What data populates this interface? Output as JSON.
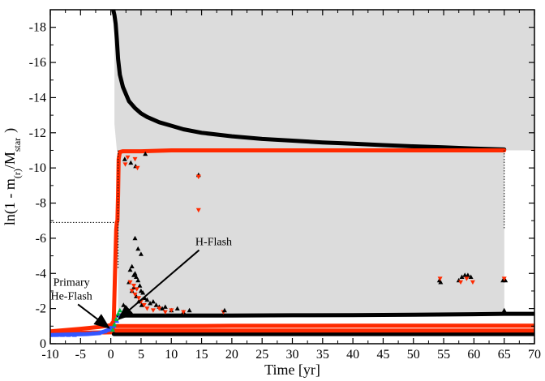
{
  "chart_data": {
    "type": "scatter",
    "xlabel": "Time [yr]",
    "ylabel": "ln(1 - m",
    "ylabel_sub1": "(r)",
    "ylabel_mid": "/M",
    "ylabel_sub2": "star",
    "ylabel_end": ")",
    "xlim": [
      -10,
      70
    ],
    "ylim": [
      0,
      -19
    ],
    "y_inverted": true,
    "grid": false,
    "legend": "none",
    "x_ticks": [
      -10,
      -5,
      0,
      5,
      10,
      15,
      20,
      25,
      30,
      35,
      40,
      45,
      50,
      55,
      60,
      65,
      70
    ],
    "x_tick_labels": [
      "-10",
      "-5",
      "0",
      "5",
      "10",
      "15",
      "20",
      "25",
      "30",
      "35",
      "40",
      "45",
      "50",
      "55",
      "60",
      "65",
      "70"
    ],
    "y_ticks": [
      0,
      -2,
      -4,
      -6,
      -8,
      -10,
      -12,
      -14,
      -16,
      -18
    ],
    "y_tick_labels": [
      "0",
      "-2",
      "-4",
      "-6",
      "-8",
      "-10",
      "-12",
      "-14",
      "-16",
      "-18"
    ],
    "shaded_region": {
      "color": "#dcdcdc",
      "polygon": [
        [
          1.2,
          -1.6
        ],
        [
          1.2,
          -11.0
        ],
        [
          65,
          -11.0
        ],
        [
          65,
          -1.7
        ],
        [
          1.2,
          -1.6
        ]
      ],
      "upper_polygon": [
        [
          0.6,
          -19
        ],
        [
          70,
          -19
        ],
        [
          70,
          -11.0
        ],
        [
          65,
          -11.0
        ],
        [
          65,
          -1.7
        ],
        [
          1.2,
          -1.6
        ],
        [
          1.2,
          -11.0
        ],
        [
          1.0,
          -11.0
        ],
        [
          0.6,
          -12.5
        ]
      ]
    },
    "series": [
      {
        "color": "#000000",
        "marker": "line",
        "x": [
          0.4,
          0.6,
          0.8,
          1.0,
          1.2,
          1.5,
          2,
          3,
          4,
          5,
          6,
          8,
          10,
          12,
          15,
          20,
          25,
          30,
          35,
          40,
          45,
          50,
          55,
          60,
          65
        ],
        "y": [
          -19,
          -18.7,
          -18.2,
          -17.3,
          -16.2,
          -15.3,
          -14.6,
          -13.8,
          -13.4,
          -13.1,
          -12.9,
          -12.6,
          -12.4,
          -12.2,
          -12.0,
          -11.8,
          -11.65,
          -11.55,
          -11.45,
          -11.38,
          -11.3,
          -11.23,
          -11.17,
          -11.1,
          -11.05
        ]
      },
      {
        "color": "#ff2a00",
        "marker": "line",
        "x": [
          -10,
          0.3,
          0.5,
          0.7,
          0.9,
          1.0,
          1.1,
          1.2,
          1.3,
          1.5,
          2,
          5,
          10,
          20,
          30,
          40,
          50,
          60,
          65
        ],
        "y": [
          -0.6,
          -0.65,
          -1.5,
          -4.0,
          -6.5,
          -6.9,
          -7.0,
          -8.5,
          -10.5,
          -10.9,
          -10.95,
          -10.95,
          -11.0,
          -11.0,
          -11.0,
          -11.0,
          -11.0,
          -11.0,
          -11.0
        ]
      },
      {
        "color": "#ff2a00",
        "marker": "line",
        "x": [
          -10,
          -5,
          -2,
          0,
          0.3
        ],
        "y": [
          -0.7,
          -0.85,
          -0.95,
          -1.05,
          -1.2
        ]
      },
      {
        "color": "#000000",
        "marker": "line",
        "x": [
          1.2,
          5,
          10,
          20,
          30,
          40,
          50,
          60,
          65,
          70
        ],
        "y": [
          -1.6,
          -1.6,
          -1.6,
          -1.6,
          -1.62,
          -1.63,
          -1.65,
          -1.68,
          -1.7,
          -1.7
        ]
      },
      {
        "color": "#ff2a00",
        "marker": "line",
        "x": [
          1.0,
          5,
          10,
          20,
          30,
          40,
          50,
          60,
          70
        ],
        "y": [
          -1.0,
          -1.0,
          -1.0,
          -1.02,
          -1.02,
          -1.03,
          -1.03,
          -1.03,
          -1.03
        ]
      },
      {
        "color": "#000000",
        "marker": "line",
        "x": [
          0.5,
          5,
          10,
          20,
          30,
          40,
          50,
          60,
          70
        ],
        "y": [
          -0.55,
          -0.55,
          -0.55,
          -0.55,
          -0.55,
          -0.55,
          -0.55,
          -0.55,
          -0.55
        ]
      },
      {
        "color": "#ff2a00",
        "marker": "line",
        "x": [
          0.8,
          5,
          10,
          20,
          30,
          40,
          50,
          60,
          70
        ],
        "y": [
          -0.75,
          -0.75,
          -0.75,
          -0.75,
          -0.75,
          -0.75,
          -0.75,
          -0.75,
          -0.75
        ]
      },
      {
        "color": "#3355ff",
        "marker": "line",
        "x": [
          -10,
          -4,
          -2,
          -1,
          -0.3,
          0
        ],
        "y": [
          -0.5,
          -0.55,
          -0.6,
          -0.7,
          -0.8,
          -0.9
        ]
      },
      {
        "color": "#000000",
        "marker": "triangle",
        "x": [
          2.1,
          2.5,
          3,
          3.2,
          3.5,
          3.8,
          4,
          4.2,
          4.5,
          4.8,
          5,
          5.3,
          5.6,
          6,
          6.5,
          7,
          7.5,
          8,
          8.5,
          9,
          10,
          11,
          12,
          13,
          4,
          4.5,
          5,
          3.5,
          3.8,
          4.2,
          4.6,
          5.1,
          2.3,
          4.1,
          5.7,
          3.3
        ],
        "y": [
          -2.2,
          -1.8,
          -3.5,
          -4.2,
          -4.4,
          -3.9,
          -4.0,
          -3.8,
          -3.6,
          -3.3,
          -3.0,
          -2.9,
          -2.6,
          -2.5,
          -2.3,
          -2.4,
          -2.2,
          -2.1,
          -2.0,
          -2.1,
          -1.9,
          -2.0,
          -1.8,
          -1.9,
          -6.0,
          -5.4,
          -5.1,
          -3.0,
          -3.2,
          -2.7,
          -2.4,
          -2.2,
          -10.5,
          -10.1,
          -10.8,
          -10.3
        ]
      },
      {
        "color": "#ff2a00",
        "marker": "triangle-down",
        "x": [
          3.2,
          3.5,
          3.8,
          4,
          4.3,
          4.6,
          5,
          5.5,
          6,
          7,
          8,
          9,
          10,
          12,
          14.5,
          14.5,
          2.4,
          2.8,
          4.0,
          4.4,
          18.6
        ],
        "y": [
          -3.5,
          -3.0,
          -3.3,
          -2.8,
          -3.1,
          -2.6,
          -2.4,
          -2.2,
          -2.0,
          -1.9,
          -2.0,
          -1.8,
          -1.9,
          -1.8,
          -9.5,
          -7.6,
          -10.2,
          -10.6,
          -10.5,
          -10.0,
          -1.8
        ]
      },
      {
        "color": "#000000",
        "marker": "triangle",
        "x": [
          54.3,
          54.5,
          57.5,
          58,
          58.5,
          59,
          59.5,
          64.8,
          65.2,
          14.5,
          18.8,
          65
        ],
        "y": [
          -3.6,
          -3.5,
          -3.6,
          -3.8,
          -3.9,
          -3.9,
          -3.8,
          -3.6,
          -3.6,
          -9.6,
          -1.9,
          -1.9
        ]
      },
      {
        "color": "#ff2a00",
        "marker": "triangle-down",
        "x": [
          54.4,
          57.8,
          58.8,
          59.8,
          65,
          14.5
        ],
        "y": [
          -3.7,
          -3.5,
          -3.7,
          -3.5,
          -3.7,
          -9.5
        ]
      },
      {
        "color": "#3355ff",
        "marker": "triangle",
        "x": [
          -10,
          -9,
          -8,
          -7,
          -6,
          -5,
          -4,
          -3,
          -2,
          -1,
          0,
          0.5,
          1,
          1.5
        ],
        "y": [
          -0.5,
          -0.5,
          -0.5,
          -0.5,
          -0.5,
          -0.55,
          -0.55,
          -0.6,
          -0.6,
          -0.7,
          -0.8,
          -1.0,
          -1.3,
          -1.6
        ]
      },
      {
        "color": "#00bb44",
        "marker": "triangle",
        "x": [
          0.3,
          0.6,
          0.9,
          1.2,
          1.5
        ],
        "y": [
          -0.8,
          -1.1,
          -1.4,
          -1.7,
          -1.9
        ]
      }
    ],
    "dotted_lines": [
      {
        "x": [
          -10,
          0.6
        ],
        "y": [
          -6.9,
          -6.9
        ]
      },
      {
        "x": [
          1.2,
          1.2
        ],
        "y": [
          -11.0,
          -4.3
        ]
      },
      {
        "x": [
          65,
          65
        ],
        "y": [
          -11.0,
          -6.5
        ]
      }
    ],
    "annotations": [
      {
        "text_lines": [
          "Primary",
          "He-Flash"
        ],
        "text_x": -6.5,
        "text_y": -3.3,
        "arrow_to": [
          -0.3,
          -0.9
        ]
      },
      {
        "text_lines": [
          "H-Flash"
        ],
        "text_x": 17,
        "text_y": -5.6,
        "arrow_to": [
          1.3,
          -1.4
        ]
      }
    ]
  }
}
